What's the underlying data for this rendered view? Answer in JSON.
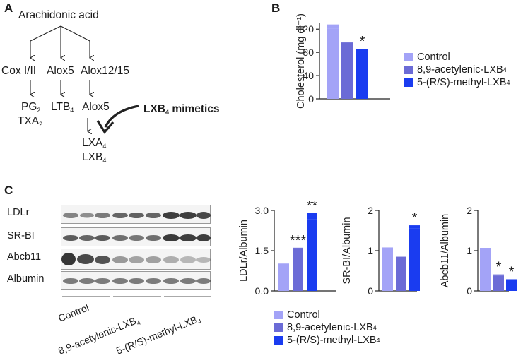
{
  "panels": {
    "a": "A",
    "b": "B",
    "c": "C"
  },
  "pathway": {
    "root": "Arachidonic acid",
    "branch1": "Cox I/II",
    "branch2": "Alox5",
    "branch3": "Alox12/15",
    "prod1a": "PG",
    "prod1a_sub": "2",
    "prod1b": "TXA",
    "prod1b_sub": "2",
    "prod2": "LTB",
    "prod2_sub": "4",
    "prod3": "Alox5",
    "final1": "LXA",
    "final1_sub": "4",
    "final2": "LXB",
    "final2_sub": "4",
    "mimetics_pre": "LXB",
    "mimetics_sub": "4",
    "mimetics_post": " mimetics"
  },
  "colors": {
    "control": "#a3a3f7",
    "acetylenic": "#6b6bd6",
    "methyl": "#1a3cf0",
    "ink": "#222222"
  },
  "legend": {
    "control": "Control",
    "acetylenic_pre": "8,9-acetylenic-LXB",
    "acetylenic_sub": "4",
    "methyl_pre": "5-(R/S)-methyl-LXB",
    "methyl_sub": "4"
  },
  "blot": {
    "rows": [
      "LDLr",
      "SR-BI",
      "Abcb11",
      "Albumin"
    ],
    "groups": [
      "Control",
      "8,9-acetylenic-LXB",
      "5-(R/S)-methyl-LXB"
    ],
    "group_sub": "4"
  },
  "chart_data": [
    {
      "type": "bar",
      "ylabel": "Cholesterol (mg dl⁻¹)",
      "ylim": [
        0,
        130
      ],
      "yticks": [
        "0",
        "40",
        "80",
        "120"
      ],
      "categories": [
        "Control",
        "8,9-acetylenic-LXB4",
        "5-(R/S)-methyl-LXB4"
      ],
      "values": [
        121,
        97,
        82
      ],
      "errors": [
        7,
        1,
        4
      ],
      "annotations": [
        "",
        "",
        "*"
      ]
    },
    {
      "type": "bar",
      "ylabel": "LDLr/Albumin",
      "ylim": [
        0,
        3.0
      ],
      "yticks": [
        "0.0",
        "1.5",
        "3.0"
      ],
      "categories": [
        "Control",
        "8,9-acetylenic-LXB4",
        "5-(R/S)-methyl-LXB4"
      ],
      "values": [
        1.0,
        1.58,
        2.68
      ],
      "errors": [
        0.02,
        0.03,
        0.22
      ],
      "annotations": [
        "",
        "***",
        "**"
      ]
    },
    {
      "type": "bar",
      "ylabel": "SR-BI/Albumin",
      "ylim": [
        0,
        2
      ],
      "yticks": [
        "0",
        "1",
        "2"
      ],
      "categories": [
        "Control",
        "8,9-acetylenic-LXB4",
        "5-(R/S)-methyl-LXB4"
      ],
      "values": [
        1.0,
        0.82,
        1.55
      ],
      "errors": [
        0.08,
        0.03,
        0.08
      ],
      "annotations": [
        "",
        "",
        "*"
      ]
    },
    {
      "type": "bar",
      "ylabel": "Abcb11/Albumin",
      "ylim": [
        0,
        2
      ],
      "yticks": [
        "0",
        "1",
        "2"
      ],
      "categories": [
        "Control",
        "8,9-acetylenic-LXB4",
        "5-(R/S)-methyl-LXB4"
      ],
      "values": [
        1.0,
        0.38,
        0.27
      ],
      "errors": [
        0.07,
        0.03,
        0.02
      ],
      "annotations": [
        "",
        "*",
        "*"
      ]
    }
  ]
}
